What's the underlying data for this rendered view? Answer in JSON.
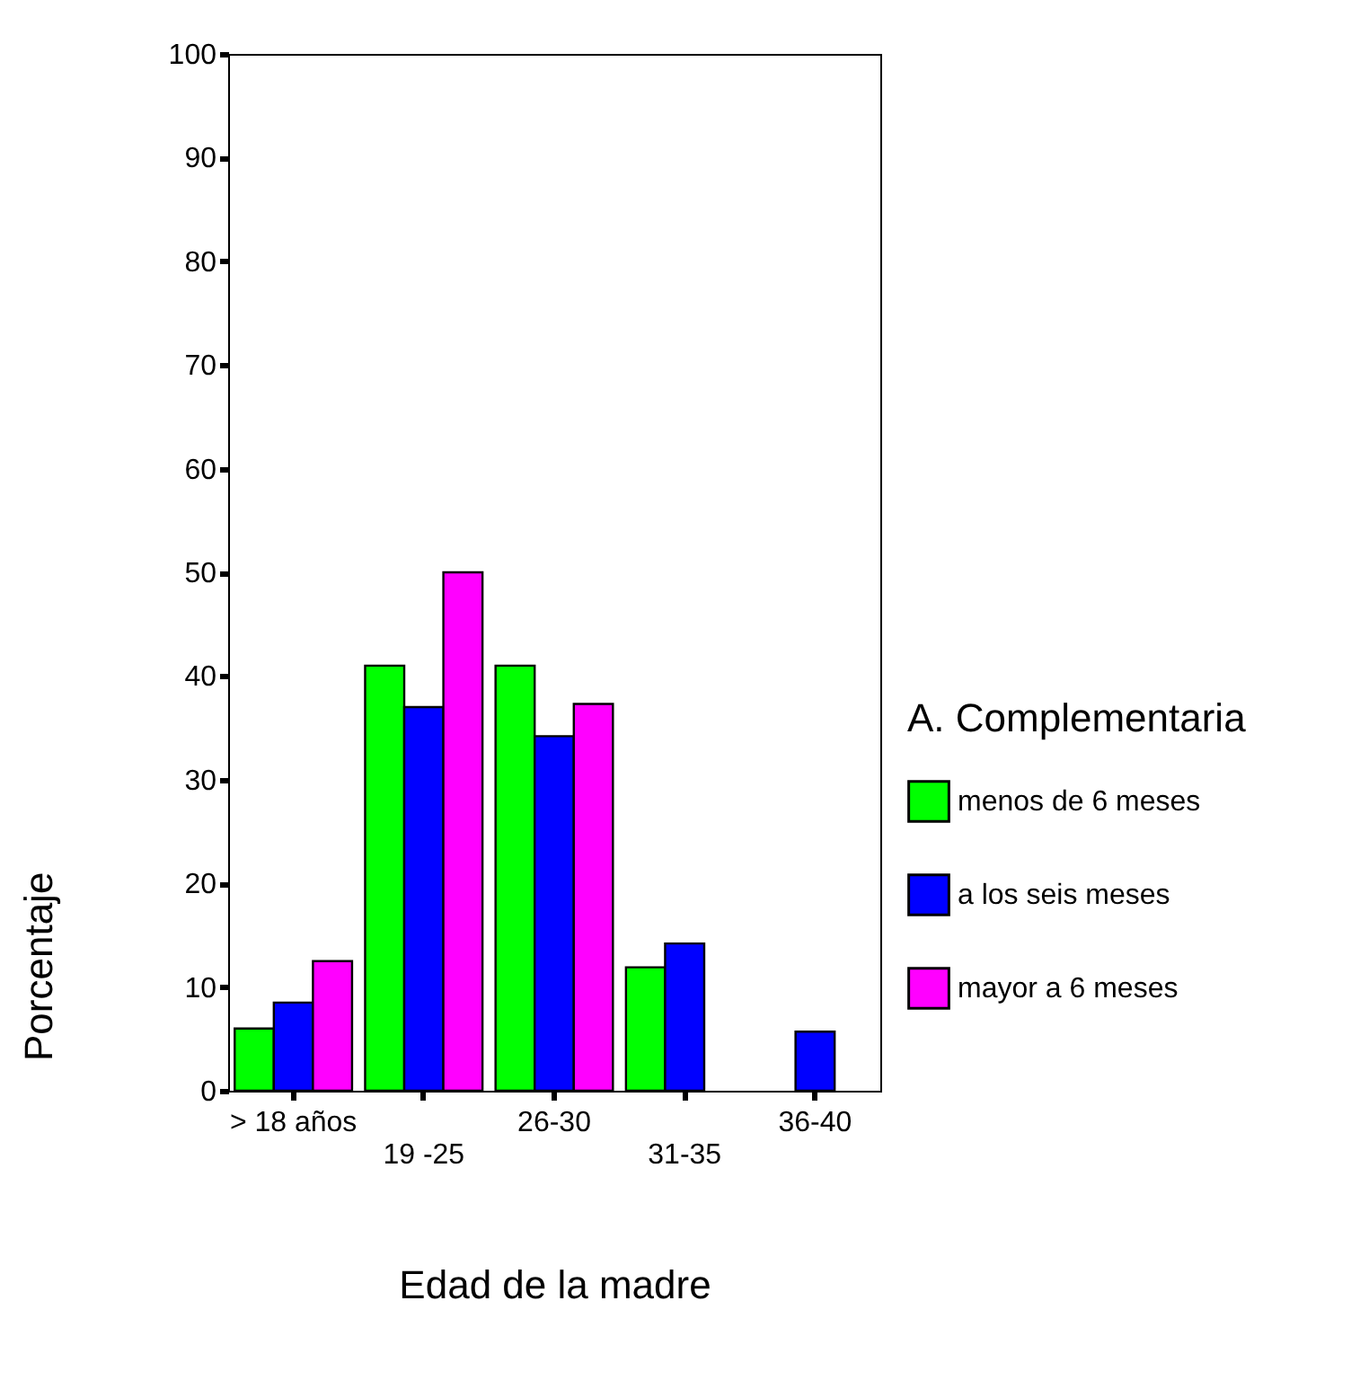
{
  "chart_data": {
    "type": "bar",
    "xlabel": "Edad de la madre",
    "ylabel": "Porcentaje",
    "legend_title": "A. Complementaria",
    "categories": [
      "> 18 años",
      "19 -25",
      "26-30",
      "31-35",
      "36-40"
    ],
    "series": [
      {
        "name": "menos de 6 meses",
        "color": "#00ff00",
        "values": [
          6,
          41,
          41,
          11.9,
          null
        ]
      },
      {
        "name": "a los seis meses",
        "color": "#0000ff",
        "values": [
          8.5,
          37,
          34.2,
          14.2,
          5.7
        ]
      },
      {
        "name": "mayor a 6 meses",
        "color": "#ff00ff",
        "values": [
          12.5,
          50,
          37.3,
          null,
          null
        ]
      }
    ],
    "ylim": [
      0,
      100
    ],
    "yticks": [
      0,
      10,
      20,
      30,
      40,
      50,
      60,
      70,
      80,
      90,
      100
    ],
    "grid": false,
    "legend": "right"
  }
}
